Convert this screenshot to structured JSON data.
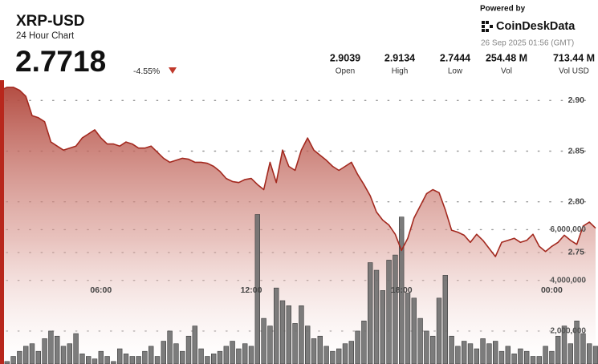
{
  "header": {
    "price": "2.7718",
    "change": "-4.55%",
    "stats": [
      {
        "value": "2.9039",
        "label": "Open"
      },
      {
        "value": "2.9134",
        "label": "High"
      },
      {
        "value": "2.7444",
        "label": "Low"
      },
      {
        "value": "254.48 M",
        "label": "Vol"
      },
      {
        "value": "713.44 M",
        "label": "Vol USD"
      }
    ],
    "powered_by": "Powered by",
    "brand": "CoinDeskData",
    "timestamp": "26 Sep 2025 01:56 (GMT)"
  },
  "chart_data": {
    "type": "line",
    "title": "XRP-USD",
    "subtitle": "24 Hour Chart",
    "categories": [
      null,
      null,
      null,
      null,
      null,
      null,
      null,
      null,
      null,
      null,
      null,
      null,
      null,
      null,
      null,
      null,
      "06:00",
      null,
      null,
      null,
      null,
      null,
      null,
      null,
      null,
      null,
      null,
      null,
      null,
      null,
      null,
      null,
      null,
      null,
      null,
      null,
      null,
      null,
      null,
      null,
      "12:00",
      null,
      null,
      null,
      null,
      null,
      null,
      null,
      null,
      null,
      null,
      null,
      null,
      null,
      null,
      null,
      null,
      null,
      null,
      null,
      null,
      null,
      null,
      null,
      "18:00",
      null,
      null,
      null,
      null,
      null,
      null,
      null,
      null,
      null,
      null,
      null,
      null,
      null,
      null,
      null,
      null,
      null,
      null,
      null,
      null,
      null,
      null,
      null,
      "00:00",
      null,
      null,
      null,
      null,
      null,
      null,
      null
    ],
    "series": [
      {
        "color": "#a3291f",
        "values": [
          2.91,
          2.913,
          2.913,
          2.91,
          2.904,
          2.885,
          2.883,
          2.879,
          2.859,
          2.855,
          2.851,
          2.853,
          2.855,
          2.863,
          2.867,
          2.871,
          2.863,
          2.857,
          2.857,
          2.855,
          2.859,
          2.857,
          2.853,
          2.853,
          2.855,
          2.849,
          2.843,
          2.839,
          2.841,
          2.843,
          2.842,
          2.839,
          2.839,
          2.838,
          2.835,
          2.83,
          2.823,
          2.82,
          2.819,
          2.822,
          2.823,
          2.817,
          2.812,
          2.839,
          2.819,
          2.851,
          2.835,
          2.831,
          2.851,
          2.863,
          2.851,
          2.846,
          2.841,
          2.835,
          2.831,
          2.835,
          2.839,
          2.827,
          2.817,
          2.806,
          2.79,
          2.782,
          2.777,
          2.768,
          2.752,
          2.764,
          2.784,
          2.796,
          2.808,
          2.812,
          2.809,
          2.792,
          2.772,
          2.77,
          2.767,
          2.76,
          2.768,
          2.762,
          2.754,
          2.746,
          2.76,
          2.762,
          2.764,
          2.76,
          2.762,
          2.768,
          2.756,
          2.751,
          2.756,
          2.76,
          2.767,
          2.762,
          2.758,
          2.776,
          2.78,
          2.774
        ]
      },
      {
        "type": "bar",
        "axis": "y2",
        "color": "#6e6e6e",
        "values": [
          1300000,
          800000,
          1000000,
          1200000,
          1400000,
          1500000,
          1200000,
          1700000,
          2000000,
          1800000,
          1400000,
          1500000,
          1900000,
          1100000,
          1000000,
          900000,
          1200000,
          1000000,
          800000,
          1300000,
          1100000,
          1000000,
          1000000,
          1200000,
          1400000,
          1000000,
          1600000,
          2000000,
          1500000,
          1200000,
          1800000,
          2200000,
          1300000,
          1000000,
          1100000,
          1200000,
          1400000,
          1600000,
          1300000,
          1500000,
          1400000,
          6600000,
          2500000,
          2200000,
          3700000,
          3200000,
          3000000,
          2300000,
          3000000,
          2200000,
          1700000,
          1800000,
          1400000,
          1200000,
          1300000,
          1500000,
          1600000,
          2000000,
          2400000,
          4700000,
          4400000,
          3600000,
          4800000,
          5000000,
          6500000,
          3500000,
          3300000,
          2500000,
          2000000,
          1800000,
          3300000,
          4200000,
          1800000,
          1400000,
          1600000,
          1500000,
          1300000,
          1700000,
          1500000,
          1600000,
          1200000,
          1400000,
          1100000,
          1300000,
          1200000,
          1000000,
          1000000,
          1400000,
          1200000,
          1800000,
          2200000,
          1500000,
          2400000,
          1900000,
          1500000,
          1400000
        ]
      }
    ],
    "ylim": [
      2.64,
      2.92
    ],
    "yticks": [
      {
        "value": 2.9,
        "label": "2.90"
      },
      2.85,
      {
        "value": 2.8,
        "label": "2.80"
      },
      2.75
    ],
    "y2lim": [
      700000,
      11900000
    ],
    "y2ticks": [
      {
        "value": 2000000,
        "label": "2,000,000"
      },
      {
        "value": 4000000,
        "label": "4,000,000"
      },
      {
        "value": 6000000,
        "label": "6,000,000"
      }
    ],
    "grid": true
  }
}
